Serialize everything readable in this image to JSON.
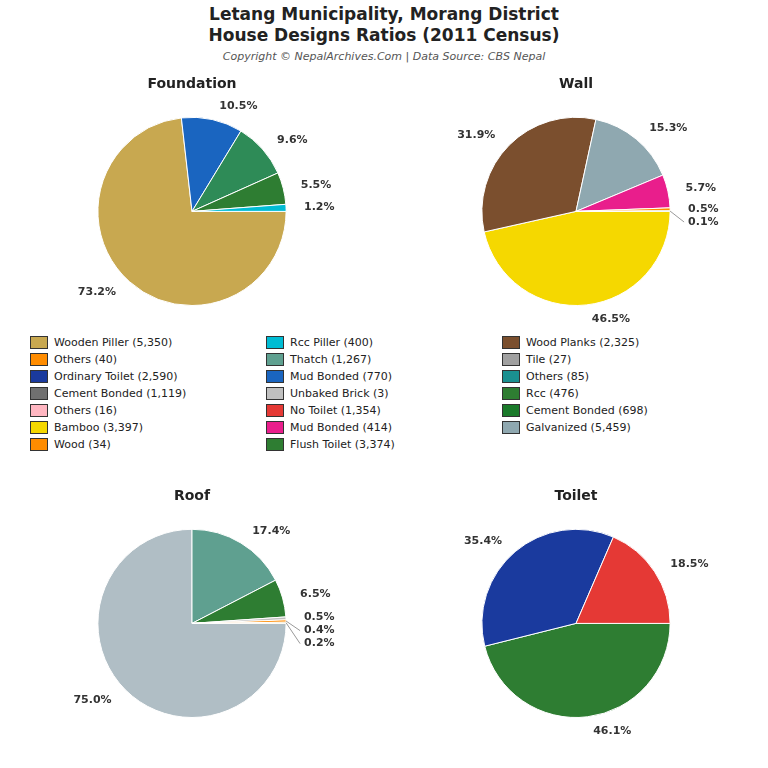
{
  "title": "Letang Municipality, Morang District\nHouse Designs Ratios (2011 Census)",
  "subtitle": "Copyright © NepalArchives.Com | Data Source: CBS Nepal",
  "legend_entries": [
    {
      "name": "Wooden Piller (5,350)",
      "color": "#c8a850"
    },
    {
      "name": "Rcc Piller (400)",
      "color": "#00bcd4"
    },
    {
      "name": "Wood Planks (2,325)",
      "color": "#7b4f2e"
    },
    {
      "name": "Others (40)",
      "color": "#ff8c00"
    },
    {
      "name": "Thatch (1,267)",
      "color": "#5fa090"
    },
    {
      "name": "Tile (27)",
      "color": "#a0a0a0"
    },
    {
      "name": "Ordinary Toilet (2,590)",
      "color": "#1a3a9e"
    },
    {
      "name": "Mud Bonded (770)",
      "color": "#1a65c0"
    },
    {
      "name": "Others (85)",
      "color": "#1a9090"
    },
    {
      "name": "Cement Bonded (1,119)",
      "color": "#707070"
    },
    {
      "name": "Unbaked Brick (3)",
      "color": "#c0c0c0"
    },
    {
      "name": "Rcc (476)",
      "color": "#2e7d32"
    },
    {
      "name": "Others (16)",
      "color": "#ffb6c1"
    },
    {
      "name": "No Toilet (1,354)",
      "color": "#e53935"
    },
    {
      "name": "Cement Bonded (698)",
      "color": "#1a7a2a"
    },
    {
      "name": "Bamboo (3,397)",
      "color": "#f5d800"
    },
    {
      "name": "Mud Bonded (414)",
      "color": "#e91e8c"
    },
    {
      "name": "Galvanized (5,459)",
      "color": "#8fa8b0"
    },
    {
      "name": "Wood (34)",
      "color": "#ff8c00"
    },
    {
      "name": "Flush Toilet (3,374)",
      "color": "#2e7d32"
    }
  ],
  "chart_data": [
    {
      "type": "pie",
      "title": "Foundation",
      "values": [
        73.2,
        10.5,
        9.6,
        5.5,
        1.2
      ],
      "value_labels": [
        "73.2%",
        "10.5%",
        "9.6%",
        "5.5%",
        "1.2%"
      ],
      "colors": [
        "#c8a850",
        "#1a65c0",
        "#2e8b57",
        "#2e7d32",
        "#00bcd4"
      ],
      "data_labels": true
    },
    {
      "type": "pie",
      "title": "Wall",
      "values": [
        46.5,
        31.9,
        15.3,
        5.7,
        0.5,
        0.1
      ],
      "value_labels": [
        "46.5%",
        "31.9%",
        "15.3%",
        "5.7%",
        "0.5%",
        "0.1%"
      ],
      "colors": [
        "#f5d800",
        "#7b4f2e",
        "#8fa8b0",
        "#e91e8c",
        "#ff8c00",
        "#1a7a2a"
      ],
      "data_labels": true
    },
    {
      "type": "pie",
      "title": "Roof",
      "values": [
        75.0,
        17.4,
        6.5,
        0.5,
        0.4,
        0.2
      ],
      "value_labels": [
        "75.0%",
        "17.4%",
        "6.5%",
        "0.5%",
        "0.4%",
        "0.2%"
      ],
      "colors": [
        "#b0bec5",
        "#5fa090",
        "#2e7d32",
        "#c0c0c0",
        "#ff8c00",
        "#c8a850"
      ],
      "data_labels": true
    },
    {
      "type": "pie",
      "title": "Toilet",
      "values": [
        46.1,
        35.4,
        18.5
      ],
      "value_labels": [
        "46.1%",
        "35.4%",
        "18.5%"
      ],
      "colors": [
        "#2e7d32",
        "#1a3a9e",
        "#e53935"
      ],
      "data_labels": true
    }
  ]
}
